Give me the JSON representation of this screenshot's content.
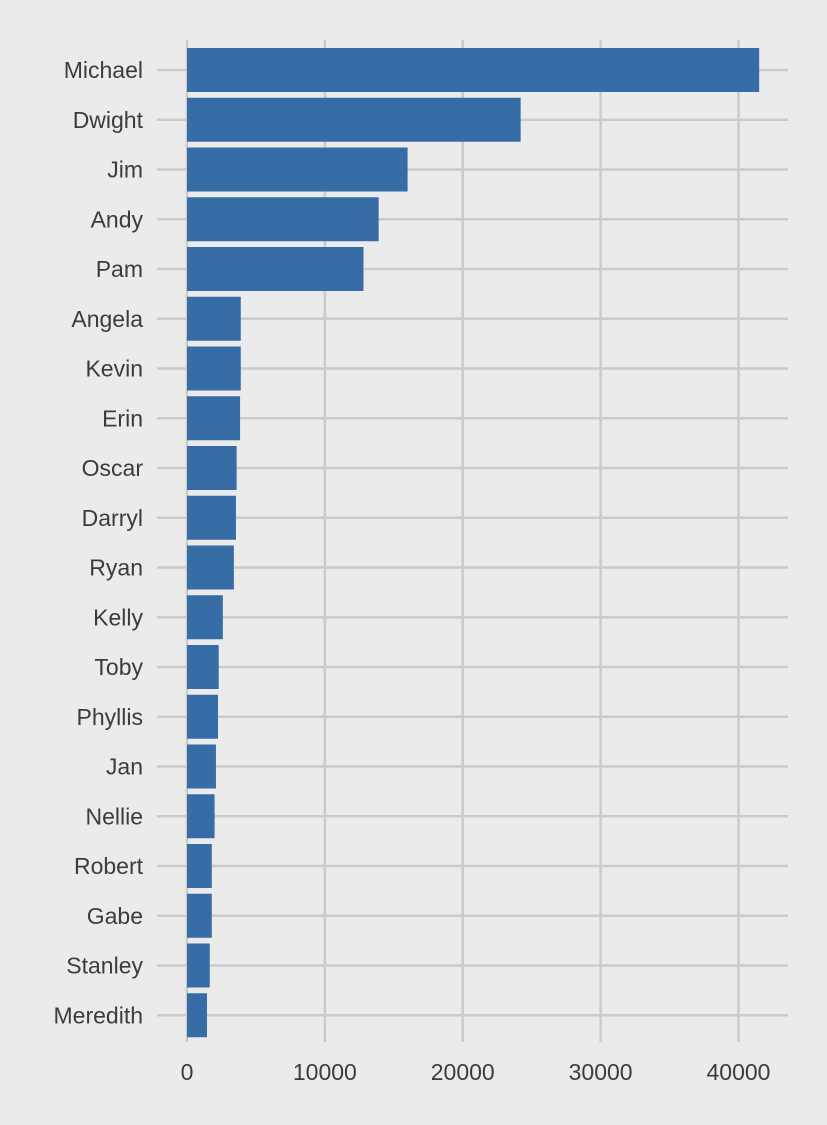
{
  "chart_data": {
    "type": "bar",
    "orientation": "horizontal",
    "categories": [
      "Michael",
      "Dwight",
      "Jim",
      "Andy",
      "Pam",
      "Angela",
      "Kevin",
      "Erin",
      "Oscar",
      "Darryl",
      "Ryan",
      "Kelly",
      "Toby",
      "Phyllis",
      "Jan",
      "Nellie",
      "Robert",
      "Gabe",
      "Stanley",
      "Meredith"
    ],
    "values": [
      41500,
      24200,
      16000,
      13900,
      12800,
      3900,
      3900,
      3850,
      3600,
      3550,
      3400,
      2600,
      2300,
      2250,
      2100,
      2000,
      1800,
      1800,
      1650,
      1450
    ],
    "title": "",
    "xlabel": "",
    "ylabel": "",
    "xlim": [
      0,
      43500
    ],
    "x_ticks": [
      "0",
      "10000",
      "20000",
      "30000",
      "40000"
    ],
    "x_tick_values": [
      0,
      10000,
      20000,
      30000,
      40000
    ],
    "grid": true,
    "bar_color": "#376da6",
    "background_color": "#ebebeb",
    "grid_color": "#cbcbcb"
  }
}
